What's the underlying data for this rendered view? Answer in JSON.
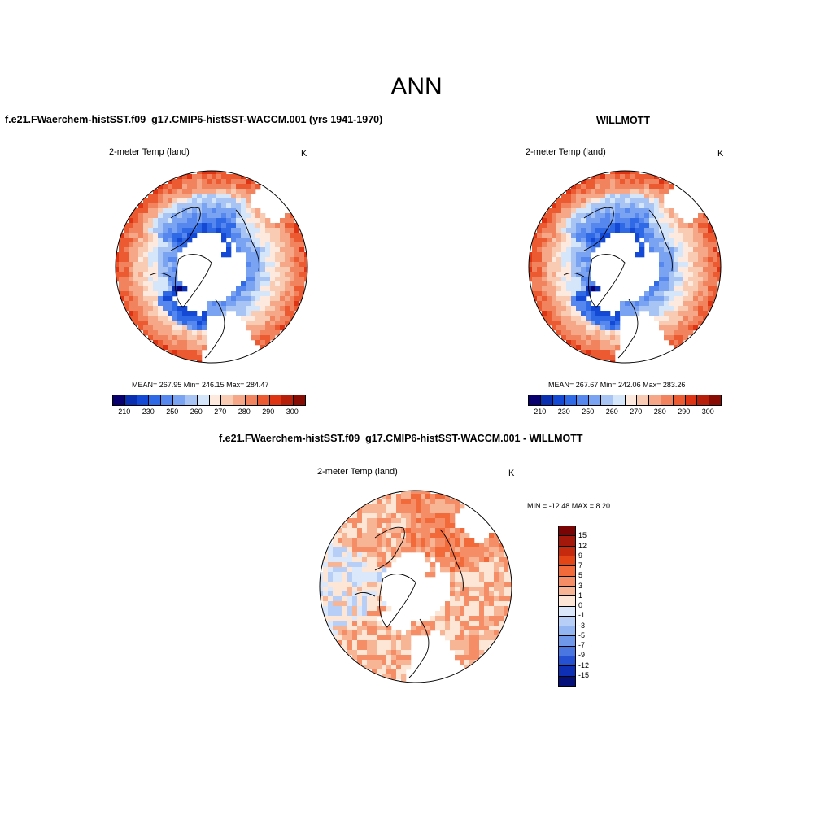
{
  "figure_title": "ANN",
  "chart_data": [
    {
      "type": "heatmap",
      "projection": "north polar stereographic",
      "title": "f.e21.FWaerchem-histSST.f09_g17.CMIP6-histSST-WACCM.001 (yrs 1941-1970)",
      "field": "2-meter Temp (land)",
      "units": "K",
      "stats_text": "MEAN= 267.95  Min= 246.15  Max= 284.47",
      "stats": {
        "mean": 267.95,
        "min": 246.15,
        "max": 284.47
      },
      "colorbar": {
        "levels": [
          210,
          220,
          230,
          240,
          250,
          255,
          260,
          265,
          270,
          275,
          280,
          285,
          290,
          295,
          300
        ],
        "tick_labels": [
          "210",
          "230",
          "250",
          "260",
          "270",
          "280",
          "290",
          "300"
        ],
        "colors": [
          "#08006e",
          "#0a2fb0",
          "#1449d6",
          "#2f69e6",
          "#5587ee",
          "#7aa3f1",
          "#a8c4f5",
          "#d5e6fb",
          "#fde9de",
          "#f9cbb2",
          "#f5a787",
          "#f1835e",
          "#ec5a32",
          "#de3414",
          "#b71f0a",
          "#880c04"
        ]
      }
    },
    {
      "type": "heatmap",
      "projection": "north polar stereographic",
      "title": "WILLMOTT",
      "field": "2-meter Temp (land)",
      "units": "K",
      "stats_text": "MEAN= 267.67  Min= 242.06  Max= 283.26",
      "stats": {
        "mean": 267.67,
        "min": 242.06,
        "max": 283.26
      },
      "colorbar": {
        "levels": [
          210,
          220,
          230,
          240,
          250,
          255,
          260,
          265,
          270,
          275,
          280,
          285,
          290,
          295,
          300
        ],
        "tick_labels": [
          "210",
          "230",
          "250",
          "260",
          "270",
          "280",
          "290",
          "300"
        ],
        "colors": [
          "#08006e",
          "#0a2fb0",
          "#1449d6",
          "#2f69e6",
          "#5587ee",
          "#7aa3f1",
          "#a8c4f5",
          "#d5e6fb",
          "#fde9de",
          "#f9cbb2",
          "#f5a787",
          "#f1835e",
          "#ec5a32",
          "#de3414",
          "#b71f0a",
          "#880c04"
        ]
      }
    },
    {
      "type": "heatmap",
      "projection": "north polar stereographic",
      "title": "f.e21.FWaerchem-histSST.f09_g17.CMIP6-histSST-WACCM.001 - WILLMOTT",
      "field": "2-meter Temp (land)",
      "units": "K",
      "stats_text": "MIN = -12.48 MAX =   8.20",
      "stats": {
        "min": -12.48,
        "max": 8.2
      },
      "colorbar": {
        "levels": [
          15,
          12,
          9,
          7,
          5,
          3,
          1,
          0,
          -1,
          -3,
          -5,
          -7,
          -9,
          -12,
          -15
        ],
        "tick_labels": [
          "15",
          "12",
          "9",
          "7",
          "5",
          "3",
          "1",
          "0",
          "-1",
          "-3",
          "-5",
          "-7",
          "-9",
          "-12",
          "-15"
        ],
        "colors": [
          "#7a0403",
          "#a4170b",
          "#c62a0e",
          "#e44516",
          "#f36a3a",
          "#f58e66",
          "#f7b596",
          "#fde6d6",
          "#dbe8fb",
          "#b7cff7",
          "#93b5f1",
          "#6f98ea",
          "#4a76e1",
          "#2650d2",
          "#0e2fb4",
          "#06107a"
        ]
      }
    }
  ]
}
